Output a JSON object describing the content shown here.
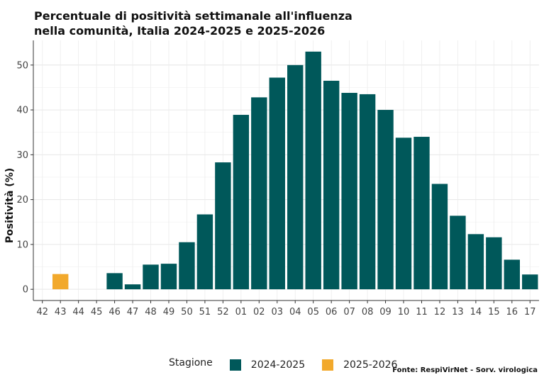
{
  "chart_data": {
    "type": "bar",
    "title": "Percentuale di positività settimanale all'influenza\n nella comunità, Italia 2024-2025 e 2025-2026",
    "ylabel": "Positività (%)",
    "xlabel": "",
    "categories": [
      "42",
      "43",
      "44",
      "45",
      "46",
      "47",
      "48",
      "49",
      "50",
      "51",
      "52",
      "01",
      "02",
      "03",
      "04",
      "05",
      "06",
      "07",
      "08",
      "09",
      "10",
      "11",
      "12",
      "13",
      "14",
      "15",
      "16",
      "17"
    ],
    "ylim": [
      -2.5,
      55.5
    ],
    "yticks": [
      0,
      10,
      20,
      30,
      40,
      50
    ],
    "grid": true,
    "legend_position": "bottom",
    "series": [
      {
        "name": "2024-2025",
        "color": "#00585A",
        "values": [
          null,
          null,
          null,
          null,
          3.6,
          1.1,
          5.5,
          5.7,
          10.5,
          16.7,
          28.3,
          38.9,
          42.8,
          47.2,
          50.0,
          53.0,
          46.5,
          43.8,
          43.5,
          40.0,
          33.8,
          34.0,
          23.5,
          16.4,
          12.3,
          11.6,
          6.6,
          3.3
        ]
      },
      {
        "name": "2025-2026",
        "color": "#F2A92C",
        "values": [
          null,
          3.4,
          null,
          null,
          null,
          null,
          null,
          null,
          null,
          null,
          null,
          null,
          null,
          null,
          null,
          null,
          null,
          null,
          null,
          null,
          null,
          null,
          null,
          null,
          null,
          null,
          null,
          null
        ]
      }
    ]
  },
  "legend": {
    "title": "Stagione"
  },
  "caption": "Fonte: RespiVirNet - Sorv. virologica"
}
